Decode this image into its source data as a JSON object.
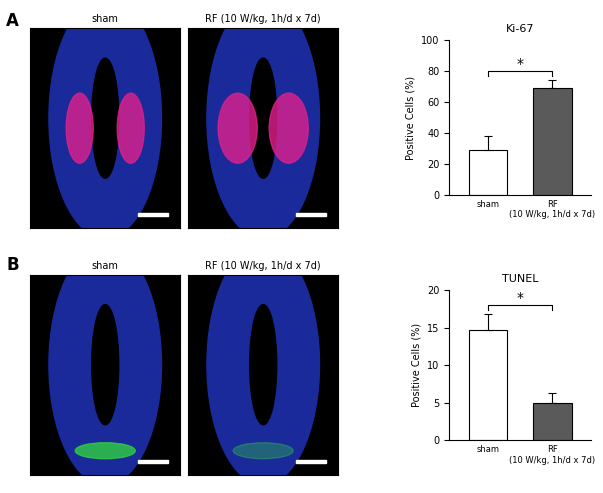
{
  "figure": {
    "panels": [
      {
        "letter": "A",
        "image_labels": [
          "sham",
          "RF (10 W/kg, 1h/d x 7d)"
        ]
      },
      {
        "letter": "B",
        "image_labels": [
          "sham",
          "RF (10 W/kg, 1h/d x 7d)"
        ]
      }
    ]
  },
  "chart_data": [
    {
      "type": "bar",
      "title": "Ki-67",
      "y_label": "Positive Cells (%)",
      "categories": [
        "sham",
        "RF\n(10 W/kg, 1h/d x 7d)"
      ],
      "values": [
        29,
        69
      ],
      "errors": [
        9,
        5
      ],
      "colors": [
        "#ffffff",
        "#5a5a5a"
      ],
      "ylim": [
        0,
        100
      ],
      "yticks": [
        0,
        20,
        40,
        60,
        80,
        100
      ],
      "annotations": [
        "*"
      ]
    },
    {
      "type": "bar",
      "title": "TUNEL",
      "y_label": "Positive Cells (%)",
      "categories": [
        "sham",
        "RF\n(10 W/kg, 1h/d x 7d)"
      ],
      "values": [
        14.7,
        5.0
      ],
      "errors": [
        2.1,
        1.3
      ],
      "colors": [
        "#ffffff",
        "#5a5a5a"
      ],
      "ylim": [
        0,
        20
      ],
      "yticks": [
        0,
        5,
        10,
        15,
        20
      ],
      "annotations": [
        "*"
      ]
    }
  ]
}
